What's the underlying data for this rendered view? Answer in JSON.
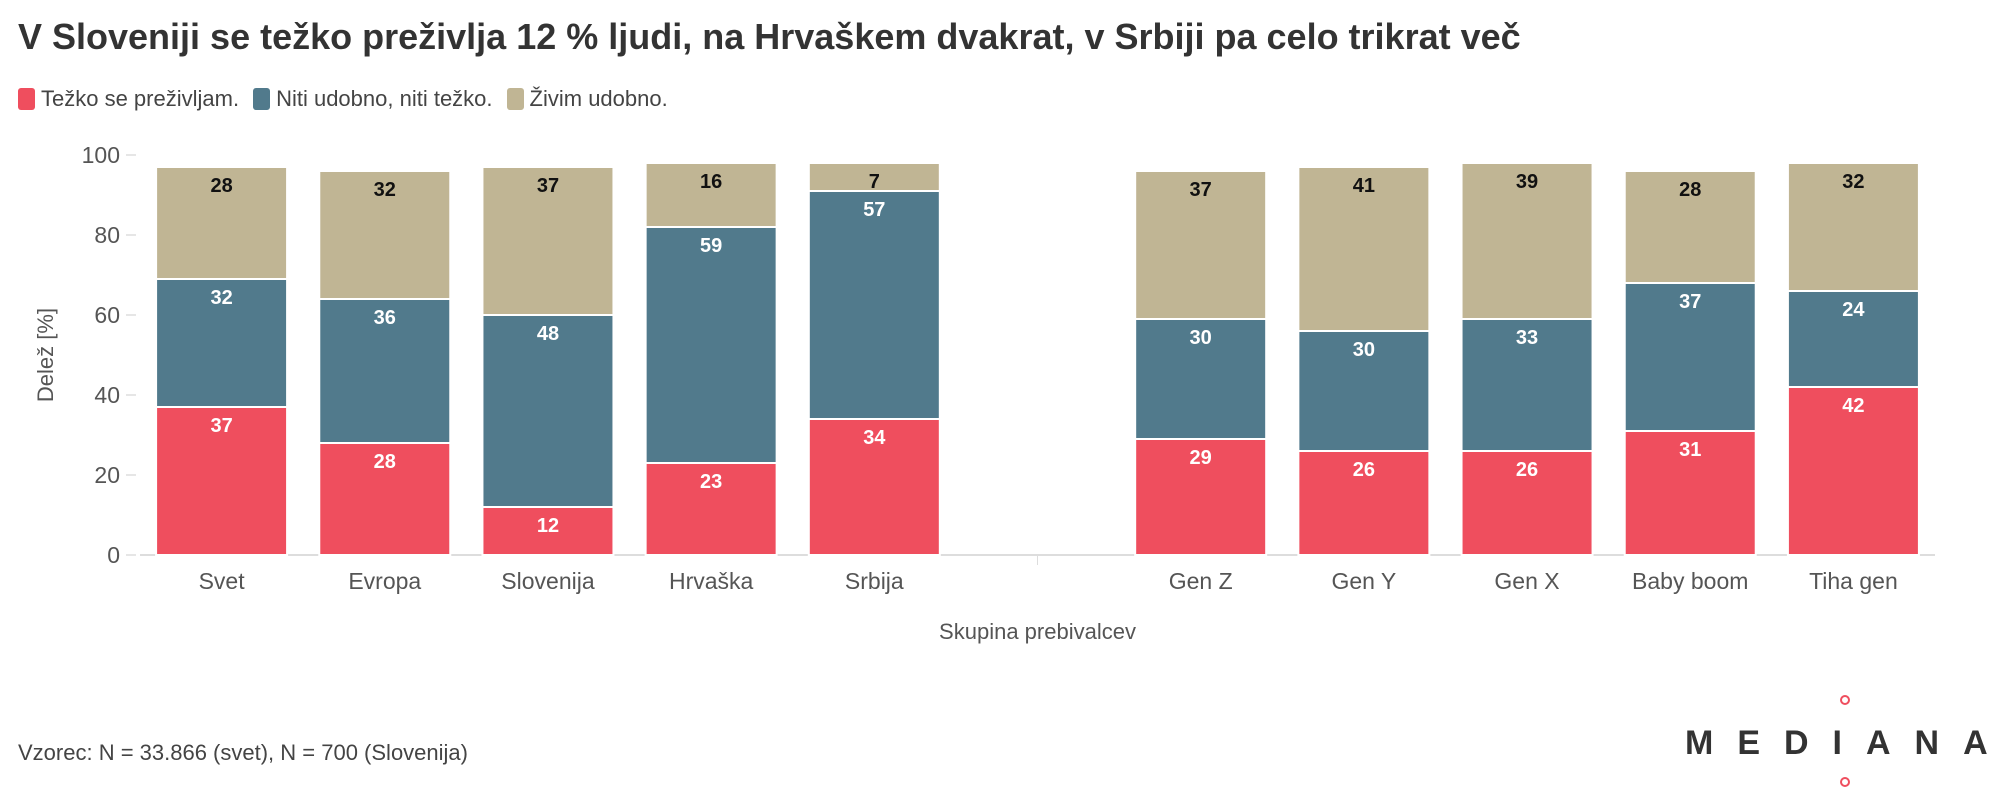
{
  "title": "V Sloveniji se težko preživlja 12 % ljudi, na Hrvaškem dvakrat, v Srbiji pa celo trikrat več",
  "legend": [
    {
      "label": "Težko se preživljam.",
      "color": "#ef4e5e"
    },
    {
      "label": "Niti udobno, niti težko.",
      "color": "#517a8c"
    },
    {
      "label": "Živim udobno.",
      "color": "#c0b594"
    }
  ],
  "footer": {
    "note": "Vzorec: N = 33.866 (svet), N = 700 (Slovenija)"
  },
  "logo": {
    "text": "MEDIANA"
  },
  "chart_data": {
    "type": "bar",
    "stacked": true,
    "categories": [
      "Svet",
      "Evropa",
      "Slovenija",
      "Hrvaška",
      "Srbija",
      "",
      "Gen Z",
      "Gen Y",
      "Gen X",
      "Baby boom",
      "Tiha gen"
    ],
    "series": [
      {
        "name": "Težko se preživljam.",
        "color": "#ef4e5e",
        "values": [
          37,
          28,
          12,
          23,
          34,
          null,
          29,
          26,
          26,
          31,
          42
        ]
      },
      {
        "name": "Niti udobno, niti težko.",
        "color": "#517a8c",
        "values": [
          32,
          36,
          48,
          59,
          57,
          null,
          30,
          30,
          33,
          37,
          24
        ]
      },
      {
        "name": "Živim udobno.",
        "color": "#c0b594",
        "values": [
          28,
          32,
          37,
          16,
          7,
          null,
          37,
          41,
          39,
          28,
          32
        ]
      }
    ],
    "xlabel": "Skupina prebivalcev",
    "ylabel": "Delež [%]",
    "ylim": [
      0,
      100
    ],
    "yticks": [
      0,
      20,
      40,
      60,
      80,
      100
    ],
    "grid": false,
    "legend_position": "top-left"
  }
}
